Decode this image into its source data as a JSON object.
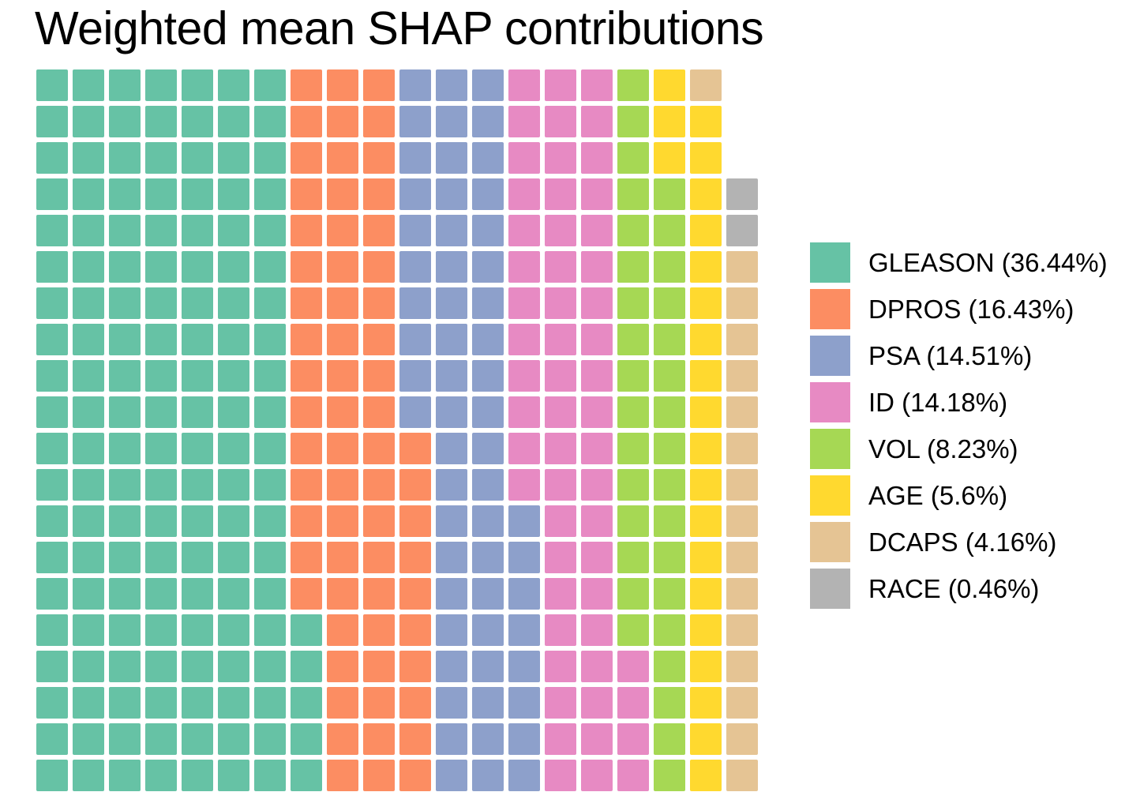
{
  "title": "Weighted mean SHAP contributions",
  "chart_data": {
    "type": "waffle",
    "title": "Weighted mean SHAP contributions",
    "grid": {
      "rows": 20,
      "cols": 20,
      "total_cells": 400,
      "filled_cells": 397,
      "empty_cells": 3,
      "fill_order": "column-major, bottom-to-top within each column, columns left-to-right; unfilled cells remain at top of last column"
    },
    "legend_position": "right",
    "categories": [
      {
        "name": "GLEASON",
        "percent": 36.44,
        "cells": 145,
        "color": "#66C2A5",
        "legend_label": "GLEASON (36.44%)"
      },
      {
        "name": "DPROS",
        "percent": 16.43,
        "cells": 65,
        "color": "#FC8D62",
        "legend_label": "DPROS (16.43%)"
      },
      {
        "name": "PSA",
        "percent": 14.51,
        "cells": 58,
        "color": "#8DA0CB",
        "legend_label": "PSA (14.51%)"
      },
      {
        "name": "ID",
        "percent": 14.18,
        "cells": 56,
        "color": "#E78AC3",
        "legend_label": "ID (14.18%)"
      },
      {
        "name": "VOL",
        "percent": 8.23,
        "cells": 33,
        "color": "#A6D854",
        "legend_label": "VOL (8.23%)"
      },
      {
        "name": "AGE",
        "percent": 5.6,
        "cells": 22,
        "color": "#FFD92F",
        "legend_label": "AGE (5.6%)"
      },
      {
        "name": "DCAPS",
        "percent": 4.16,
        "cells": 16,
        "color": "#E5C494",
        "legend_label": "DCAPS (4.16%)"
      },
      {
        "name": "RACE",
        "percent": 0.46,
        "cells": 2,
        "color": "#B3B3B3",
        "legend_label": "RACE (0.46%)"
      }
    ]
  }
}
